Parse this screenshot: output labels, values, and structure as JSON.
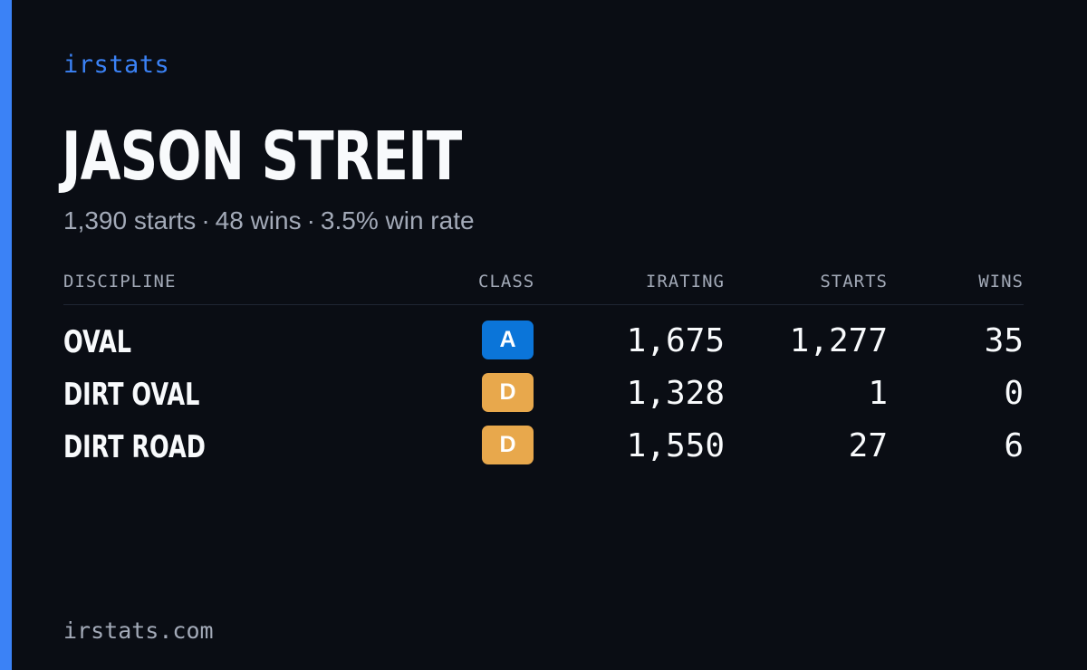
{
  "brand": "irstats",
  "player": {
    "name": "JASON STREIT",
    "summary": {
      "starts": "1,390 starts",
      "wins": "48 wins",
      "win_rate": "3.5% win rate",
      "separator": "·"
    }
  },
  "table": {
    "headers": {
      "discipline": "DISCIPLINE",
      "class": "CLASS",
      "irating": "IRATING",
      "starts": "STARTS",
      "wins": "WINS"
    },
    "rows": [
      {
        "discipline": "OVAL",
        "class": "A",
        "class_color": "#0b75d9",
        "irating": "1,675",
        "starts": "1,277",
        "wins": "35"
      },
      {
        "discipline": "DIRT OVAL",
        "class": "D",
        "class_color": "#e8a84c",
        "irating": "1,328",
        "starts": "1",
        "wins": "0"
      },
      {
        "discipline": "DIRT ROAD",
        "class": "D",
        "class_color": "#e8a84c",
        "irating": "1,550",
        "starts": "27",
        "wins": "6"
      }
    ]
  },
  "footer": "irstats.com",
  "colors": {
    "background": "#0a0d14",
    "accent": "#3b82f6",
    "muted_text": "#a3aab8"
  }
}
